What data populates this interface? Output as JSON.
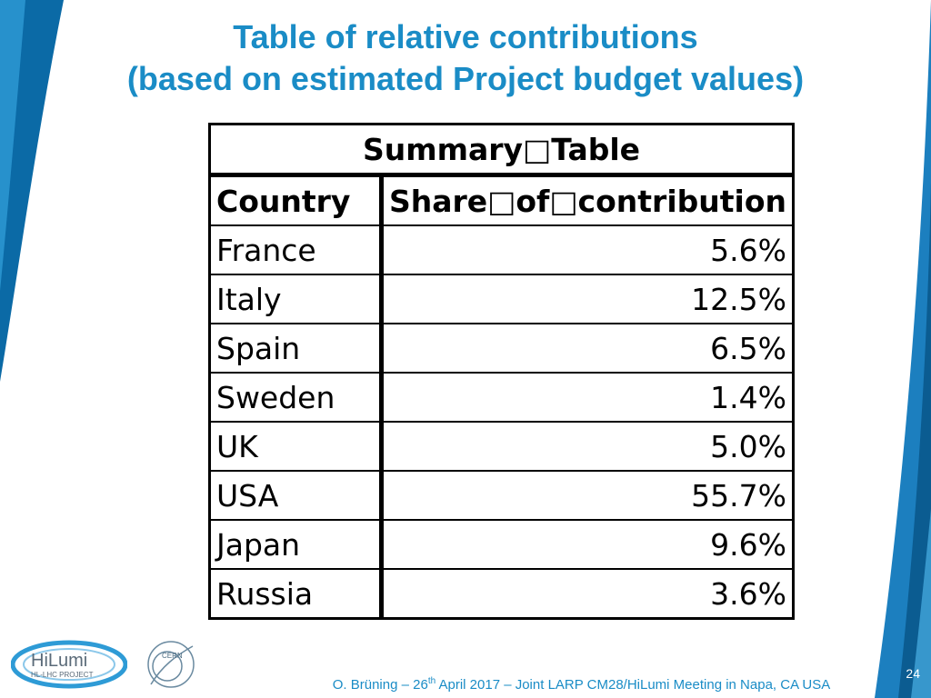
{
  "title": {
    "line1": "Table of relative contributions",
    "line2": "(based on estimated Project budget values)"
  },
  "table": {
    "caption": "Summary□Table",
    "headers": [
      "Country",
      "Share□of□contribution"
    ],
    "rows": [
      {
        "country": "France",
        "share": "5.6%"
      },
      {
        "country": "Italy",
        "share": "12.5%"
      },
      {
        "country": "Spain",
        "share": "6.5%"
      },
      {
        "country": "Sweden",
        "share": "1.4%"
      },
      {
        "country": "UK",
        "share": "5.0%"
      },
      {
        "country": "USA",
        "share": "55.7%"
      },
      {
        "country": "Japan",
        "share": "9.6%"
      },
      {
        "country": "Russia",
        "share": "3.6%"
      }
    ]
  },
  "footer": {
    "pre": "O. Brüning – 26",
    "sup": "th",
    "post": " April 2017 – Joint LARP CM28/HiLumi Meeting in Napa, CA USA",
    "page": "24"
  },
  "logos": {
    "hilumi_top": "HiLumi",
    "hilumi_sub": "HL-LHC PROJECT",
    "cern": "CERN"
  },
  "colors": {
    "accent": "#1a8cc6",
    "swoosh_dark": "#0b5c91"
  }
}
